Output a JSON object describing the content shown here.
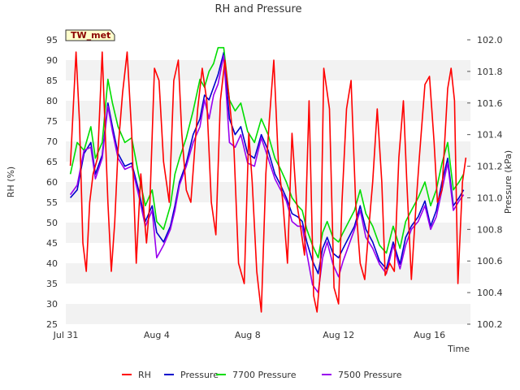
{
  "chart_data": {
    "type": "line",
    "title": "RH and Pressure",
    "badge": "TW_met",
    "xlabel": "Time",
    "ylabel_left": "RH (%)",
    "ylabel_right": "Pressure (kPa)",
    "xlim": [
      0,
      17.8
    ],
    "ylim_left": [
      25,
      95
    ],
    "ylim_right": [
      100.2,
      102.0
    ],
    "x_ticks": [
      {
        "x": 0,
        "label": "Jul 31"
      },
      {
        "x": 4,
        "label": "Aug 4"
      },
      {
        "x": 8,
        "label": "Aug 8"
      },
      {
        "x": 12,
        "label": "Aug 12"
      },
      {
        "x": 16,
        "label": "Aug 16"
      }
    ],
    "y_ticks_left": [
      "25",
      "30",
      "35",
      "40",
      "45",
      "50",
      "55",
      "60",
      "65",
      "70",
      "75",
      "80",
      "85",
      "90",
      "95"
    ],
    "y_ticks_right": [
      "100.2",
      "100.4",
      "100.6",
      "100.8",
      "101.0",
      "101.2",
      "101.4",
      "101.6",
      "101.8",
      "102.0"
    ],
    "grid": true,
    "legend_position": "bottom",
    "series": [
      {
        "name": "RH",
        "axis": "left",
        "color": "#ff0000",
        "x": [
          0.2,
          0.45,
          0.6,
          0.75,
          0.9,
          1.05,
          1.2,
          1.4,
          1.6,
          1.85,
          2.0,
          2.15,
          2.3,
          2.5,
          2.7,
          2.9,
          3.1,
          3.3,
          3.55,
          3.7,
          3.9,
          4.1,
          4.3,
          4.55,
          4.75,
          4.95,
          5.1,
          5.3,
          5.5,
          5.8,
          6.0,
          6.2,
          6.4,
          6.6,
          6.8,
          7.0,
          7.2,
          7.4,
          7.6,
          7.85,
          8.05,
          8.2,
          8.4,
          8.6,
          8.8,
          8.95,
          9.15,
          9.35,
          9.55,
          9.75,
          9.95,
          10.15,
          10.3,
          10.5,
          10.7,
          10.9,
          11.05,
          11.2,
          11.35,
          11.6,
          11.8,
          12.0,
          12.15,
          12.35,
          12.55,
          12.75,
          12.95,
          13.15,
          13.35,
          13.5,
          13.7,
          13.9,
          14.05,
          14.25,
          14.45,
          14.65,
          14.85,
          15.0,
          15.2,
          15.4,
          15.55,
          15.8,
          16.0,
          16.2,
          16.35,
          16.55,
          16.8,
          16.95,
          17.1,
          17.25,
          17.45,
          17.6
        ],
        "y": [
          64,
          92,
          75,
          45,
          38,
          55,
          62,
          66,
          92,
          55,
          38,
          50,
          68,
          82,
          92,
          72,
          40,
          62,
          45,
          55,
          88,
          85,
          65,
          55,
          85,
          90,
          72,
          58,
          55,
          78,
          88,
          80,
          55,
          47,
          80,
          90,
          80,
          68,
          40,
          35,
          72,
          60,
          38,
          28,
          62,
          75,
          90,
          65,
          55,
          40,
          72,
          55,
          50,
          42,
          80,
          32,
          28,
          38,
          88,
          78,
          34,
          30,
          55,
          78,
          85,
          55,
          40,
          36,
          50,
          60,
          78,
          60,
          37,
          40,
          38,
          66,
          80,
          60,
          36,
          54,
          66,
          84,
          86,
          70,
          55,
          58,
          83,
          88,
          80,
          35,
          60,
          66
        ]
      },
      {
        "name": "Pressure",
        "axis": "right",
        "color": "#0000cc",
        "x": [
          0.2,
          0.5,
          0.8,
          1.1,
          1.3,
          1.6,
          1.85,
          2.05,
          2.3,
          2.6,
          2.9,
          3.2,
          3.5,
          3.8,
          4.0,
          4.3,
          4.6,
          4.8,
          5.0,
          5.3,
          5.6,
          5.9,
          6.1,
          6.3,
          6.5,
          6.7,
          6.95,
          7.2,
          7.45,
          7.7,
          8.0,
          8.3,
          8.6,
          8.9,
          9.2,
          9.45,
          9.7,
          9.95,
          10.2,
          10.4,
          10.6,
          10.85,
          11.1,
          11.3,
          11.5,
          11.75,
          12.0,
          12.2,
          12.45,
          12.7,
          12.95,
          13.2,
          13.5,
          13.8,
          14.1,
          14.4,
          14.7,
          14.95,
          15.2,
          15.5,
          15.8,
          16.05,
          16.3,
          16.55,
          16.8,
          17.05,
          17.3,
          17.5
        ],
        "y": [
          101.0,
          101.05,
          101.28,
          101.35,
          101.15,
          101.27,
          101.6,
          101.45,
          101.28,
          101.2,
          101.22,
          101.05,
          100.85,
          100.95,
          100.78,
          100.72,
          100.82,
          100.95,
          101.1,
          101.22,
          101.4,
          101.5,
          101.65,
          101.62,
          101.7,
          101.78,
          101.92,
          101.5,
          101.4,
          101.45,
          101.28,
          101.25,
          101.4,
          101.3,
          101.15,
          101.08,
          101.0,
          100.9,
          100.88,
          100.85,
          100.72,
          100.6,
          100.52,
          100.68,
          100.75,
          100.65,
          100.62,
          100.68,
          100.75,
          100.82,
          100.95,
          100.8,
          100.72,
          100.6,
          100.55,
          100.72,
          100.58,
          100.75,
          100.82,
          100.88,
          100.98,
          100.82,
          100.92,
          101.1,
          101.25,
          100.95,
          101.0,
          101.05
        ]
      },
      {
        "name": "7700 Pressure",
        "axis": "right",
        "color": "#00dd00",
        "x": [
          0.2,
          0.5,
          0.8,
          1.1,
          1.3,
          1.6,
          1.85,
          2.05,
          2.3,
          2.6,
          2.9,
          3.2,
          3.5,
          3.8,
          4.0,
          4.3,
          4.6,
          4.8,
          5.0,
          5.3,
          5.6,
          5.9,
          6.1,
          6.3,
          6.5,
          6.7,
          6.95,
          7.2,
          7.45,
          7.7,
          8.0,
          8.3,
          8.6,
          8.9,
          9.2,
          9.45,
          9.7,
          9.95,
          10.2,
          10.4,
          10.6,
          10.85,
          11.1,
          11.3,
          11.5,
          11.75,
          12.0,
          12.2,
          12.45,
          12.7,
          12.95,
          13.2,
          13.5,
          13.8,
          14.1,
          14.4,
          14.7,
          14.95,
          15.2,
          15.5,
          15.8,
          16.05,
          16.3,
          16.55,
          16.8,
          17.05,
          17.3,
          17.5
        ],
        "y": [
          101.15,
          101.35,
          101.3,
          101.45,
          101.25,
          101.35,
          101.75,
          101.6,
          101.45,
          101.35,
          101.38,
          101.15,
          100.95,
          101.05,
          100.85,
          100.8,
          100.95,
          101.15,
          101.25,
          101.38,
          101.55,
          101.75,
          101.7,
          101.8,
          101.85,
          101.95,
          101.95,
          101.62,
          101.55,
          101.6,
          101.42,
          101.35,
          101.5,
          101.4,
          101.25,
          101.18,
          101.1,
          101.0,
          100.95,
          100.92,
          100.8,
          100.7,
          100.62,
          100.78,
          100.85,
          100.75,
          100.72,
          100.78,
          100.85,
          100.92,
          101.05,
          100.9,
          100.82,
          100.7,
          100.65,
          100.82,
          100.68,
          100.85,
          100.92,
          101.0,
          101.1,
          100.95,
          101.05,
          101.22,
          101.35,
          101.05,
          101.1,
          101.15
        ]
      },
      {
        "name": "7500 Pressure",
        "axis": "right",
        "color": "#9900ee",
        "x": [
          0.2,
          0.5,
          0.8,
          1.1,
          1.3,
          1.6,
          1.85,
          2.05,
          2.3,
          2.6,
          2.9,
          3.2,
          3.5,
          3.8,
          4.0,
          4.3,
          4.6,
          4.8,
          5.0,
          5.3,
          5.6,
          5.9,
          6.1,
          6.3,
          6.5,
          6.7,
          6.95,
          7.2,
          7.45,
          7.7,
          8.0,
          8.3,
          8.6,
          8.9,
          9.2,
          9.45,
          9.7,
          9.95,
          10.2,
          10.4,
          10.6,
          10.85,
          11.1,
          11.3,
          11.5,
          11.75,
          12.0,
          12.2,
          12.45,
          12.7,
          12.95,
          13.2,
          13.5,
          13.8,
          14.1,
          14.4,
          14.7,
          14.95,
          15.2,
          15.5,
          15.8,
          16.05,
          16.3,
          16.55,
          16.8,
          17.05,
          17.3,
          17.5
        ],
        "y": [
          101.02,
          101.08,
          101.3,
          101.32,
          101.12,
          101.25,
          101.58,
          101.42,
          101.25,
          101.18,
          101.2,
          101.02,
          100.82,
          100.92,
          100.62,
          100.7,
          100.8,
          100.92,
          101.08,
          101.2,
          101.35,
          101.45,
          101.62,
          101.5,
          101.65,
          101.72,
          101.9,
          101.35,
          101.32,
          101.4,
          101.22,
          101.2,
          101.38,
          101.25,
          101.12,
          101.05,
          100.98,
          100.85,
          100.82,
          100.82,
          100.65,
          100.45,
          100.4,
          100.62,
          100.72,
          100.58,
          100.5,
          100.6,
          100.7,
          100.8,
          100.92,
          100.75,
          100.68,
          100.58,
          100.52,
          100.7,
          100.55,
          100.7,
          100.8,
          100.85,
          100.95,
          100.8,
          100.88,
          101.05,
          101.22,
          100.92,
          100.98,
          101.02
        ]
      }
    ]
  }
}
